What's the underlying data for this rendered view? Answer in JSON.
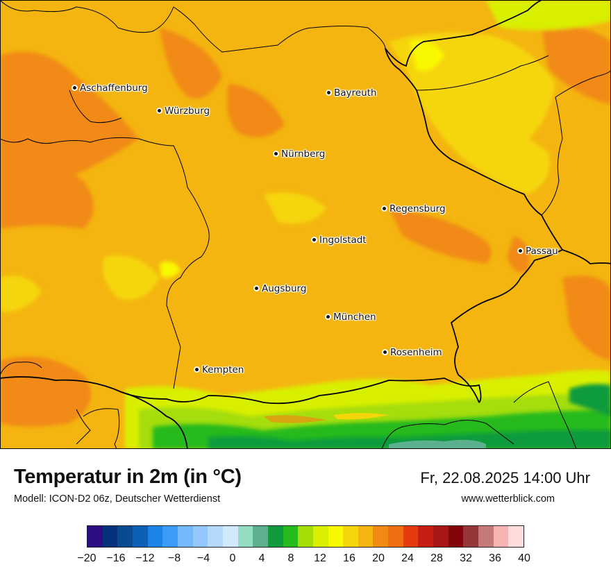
{
  "title": "Temperatur in 2m (in °C)",
  "subtitle": "Modell: ICON-D2 06z, Deutscher Wetterdienst",
  "datetime": "Fr, 22.08.2025 14:00 Uhr",
  "website": "www.wetterblick.com",
  "cities": [
    {
      "name": "Aschaffenburg"
    },
    {
      "name": "Würzburg"
    },
    {
      "name": "Bayreuth"
    },
    {
      "name": "Nürnberg"
    },
    {
      "name": "Regensburg"
    },
    {
      "name": "Ingolstadt"
    },
    {
      "name": "Passau"
    },
    {
      "name": "Augsburg"
    },
    {
      "name": "München"
    },
    {
      "name": "Rosenheim"
    },
    {
      "name": "Kempten"
    }
  ],
  "legend": {
    "ticks": [
      "−20",
      "−16",
      "−12",
      "−8",
      "−4",
      "0",
      "4",
      "8",
      "12",
      "16",
      "20",
      "24",
      "28",
      "32",
      "36",
      "40"
    ],
    "colors": [
      "#2e0e84",
      "#05327a",
      "#0a4a90",
      "#0e5fb8",
      "#1c84e8",
      "#3b9cf7",
      "#73b8fa",
      "#92c8fb",
      "#b5d9fc",
      "#d2e8fd",
      "#93dcc2",
      "#5cb08e",
      "#119b3e",
      "#25ba1d",
      "#a5dd09",
      "#d9ef02",
      "#f8f801",
      "#f5d60a",
      "#f4b510",
      "#f18a12",
      "#ef6f10",
      "#e43b0e",
      "#c61f11",
      "#a81616",
      "#830509",
      "#94363a",
      "#c57979",
      "#f7b3b1",
      "#ffdcdc"
    ]
  }
}
